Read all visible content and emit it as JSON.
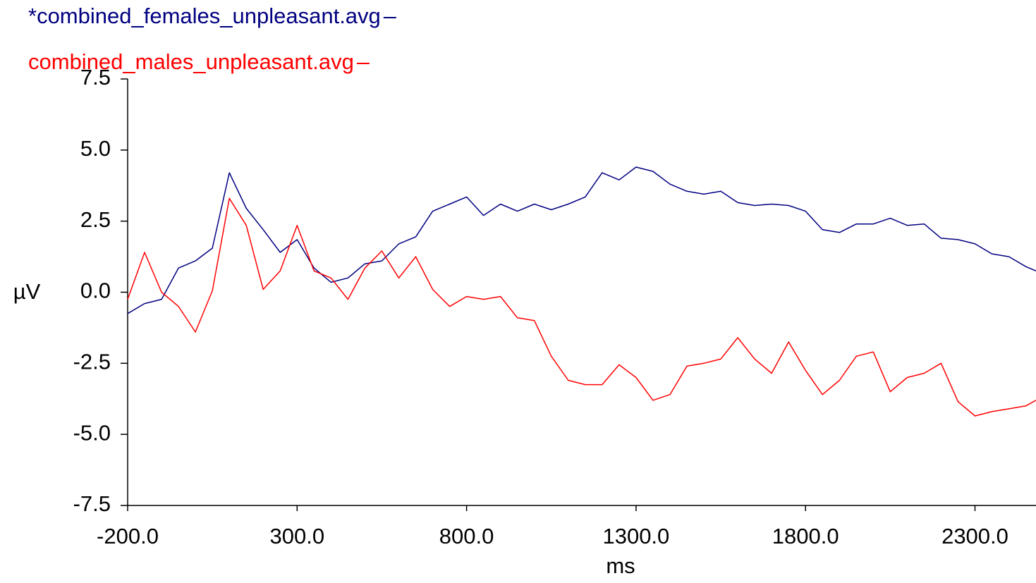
{
  "chart_data": {
    "type": "line",
    "x_label": "ms",
    "y_label": "µV",
    "xlim": [
      -200,
      2480
    ],
    "ylim": [
      -7.5,
      7.5
    ],
    "xticks": [
      {
        "value": -200,
        "label": "-200.0"
      },
      {
        "value": 300,
        "label": "300.0"
      },
      {
        "value": 800,
        "label": "800.0"
      },
      {
        "value": 1300,
        "label": "1300.0"
      },
      {
        "value": 1800,
        "label": "1800.0"
      },
      {
        "value": 2300,
        "label": "2300.0"
      }
    ],
    "yticks": [
      {
        "value": -7.5,
        "label": "-7.5"
      },
      {
        "value": -5,
        "label": "-5.0"
      },
      {
        "value": -2.5,
        "label": "-2.5"
      },
      {
        "value": 0,
        "label": "0.0"
      },
      {
        "value": 2.5,
        "label": "2.5"
      },
      {
        "value": 5,
        "label": "5.0"
      },
      {
        "value": 7.5,
        "label": "7.5"
      }
    ],
    "x": [
      -200,
      -150,
      -100,
      -50,
      0,
      50,
      100,
      150,
      200,
      250,
      300,
      350,
      400,
      450,
      500,
      550,
      600,
      650,
      700,
      750,
      800,
      850,
      900,
      950,
      1000,
      1050,
      1100,
      1150,
      1200,
      1250,
      1300,
      1350,
      1400,
      1450,
      1500,
      1550,
      1600,
      1650,
      1700,
      1750,
      1800,
      1850,
      1900,
      1950,
      2000,
      2050,
      2100,
      2150,
      2200,
      2250,
      2300,
      2350,
      2400,
      2450,
      2480
    ],
    "series": [
      {
        "name": "*combined_females_unpleasant.avg",
        "color": "#000080",
        "values": [
          -0.75,
          -0.4,
          -0.25,
          0.85,
          1.1,
          1.55,
          4.2,
          2.95,
          2.2,
          1.4,
          1.85,
          0.85,
          0.35,
          0.5,
          1.0,
          1.1,
          1.7,
          1.95,
          2.85,
          3.1,
          3.35,
          2.7,
          3.1,
          2.85,
          3.1,
          2.9,
          3.1,
          3.35,
          4.2,
          3.95,
          4.4,
          4.25,
          3.8,
          3.55,
          3.45,
          3.55,
          3.15,
          3.05,
          3.1,
          3.05,
          2.85,
          2.2,
          2.1,
          2.4,
          2.4,
          2.6,
          2.35,
          2.4,
          1.9,
          1.85,
          1.7,
          1.35,
          1.25,
          0.9,
          0.75
        ]
      },
      {
        "name": "combined_males_unpleasant.avg",
        "color": "#ff0000",
        "values": [
          -0.25,
          1.4,
          0,
          -0.5,
          -1.4,
          0.05,
          3.3,
          2.35,
          0.1,
          0.75,
          2.35,
          0.75,
          0.5,
          -0.25,
          0.85,
          1.45,
          0.5,
          1.25,
          0.1,
          -0.5,
          -0.15,
          -0.25,
          -0.15,
          -0.9,
          -1.0,
          -2.25,
          -3.1,
          -3.25,
          -3.25,
          -2.55,
          -3.0,
          -3.8,
          -3.6,
          -2.6,
          -2.5,
          -2.35,
          -1.6,
          -2.35,
          -2.85,
          -1.75,
          -2.75,
          -3.6,
          -3.1,
          -2.25,
          -2.1,
          -3.5,
          -3.0,
          -2.85,
          -2.5,
          -3.85,
          -4.35,
          -4.2,
          -4.1,
          -4.0,
          -3.8
        ]
      }
    ]
  }
}
